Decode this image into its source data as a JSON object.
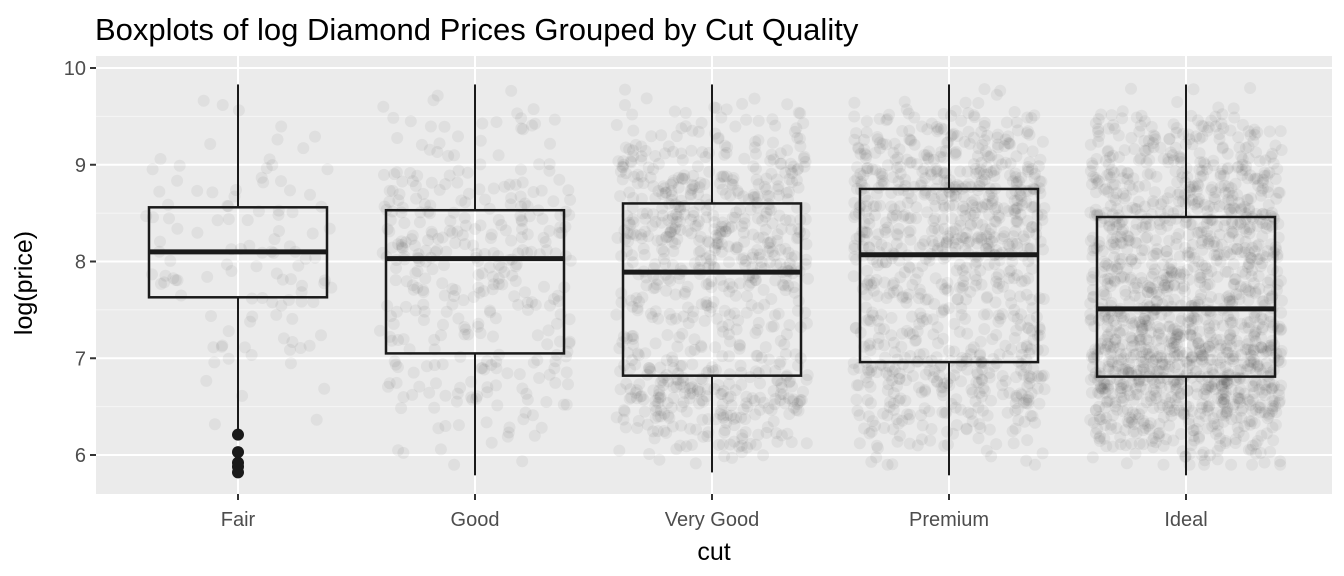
{
  "chart_data": {
    "type": "boxplot",
    "title": "Boxplots of log Diamond Prices Grouped by Cut Quality",
    "xlabel": "cut",
    "ylabel": "log(price)",
    "categories": [
      "Fair",
      "Good",
      "Very Good",
      "Premium",
      "Ideal"
    ],
    "ylim": [
      5.6,
      10.0
    ],
    "yticks": [
      6,
      7,
      8,
      9,
      10
    ],
    "ytick_labels": [
      "6",
      "7",
      "8",
      "9",
      "10"
    ],
    "grid": true,
    "jitter_points": true,
    "boxes": [
      {
        "category": "Fair",
        "min": 6.22,
        "q1": 7.63,
        "median": 8.1,
        "q3": 8.56,
        "max": 9.83,
        "outliers": [
          6.21,
          6.03,
          5.92,
          5.88,
          5.82
        ]
      },
      {
        "category": "Good",
        "min": 5.79,
        "q1": 7.05,
        "median": 8.03,
        "q3": 8.53,
        "max": 9.83,
        "outliers": []
      },
      {
        "category": "Very Good",
        "min": 5.82,
        "q1": 6.82,
        "median": 7.89,
        "q3": 8.6,
        "max": 9.83,
        "outliers": []
      },
      {
        "category": "Premium",
        "min": 5.79,
        "q1": 6.96,
        "median": 8.07,
        "q3": 8.75,
        "max": 9.83,
        "outliers": []
      },
      {
        "category": "Ideal",
        "min": 5.79,
        "q1": 6.81,
        "median": 7.51,
        "q3": 8.46,
        "max": 9.83,
        "outliers": []
      }
    ],
    "point_density": [
      0.08,
      0.25,
      0.55,
      0.65,
      1.0
    ],
    "colors": {
      "panel": "#ebebeb",
      "grid_major": "#ffffff",
      "grid_minor": "#f5f5f5",
      "points": "#000000",
      "box_line": "#1a1a1a"
    }
  }
}
